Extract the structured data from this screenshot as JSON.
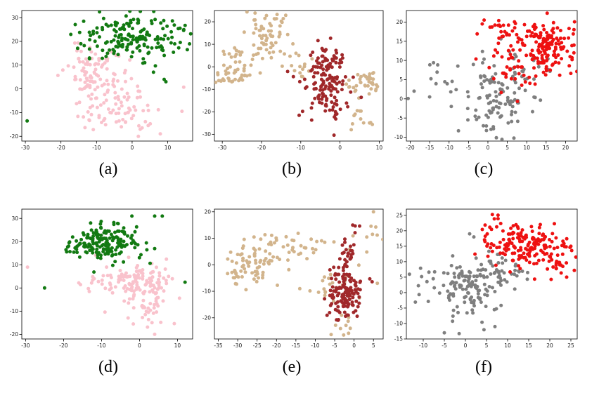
{
  "colors": {
    "green": "#127a12",
    "pink": "#f9c2cc",
    "tan": "#d2b48c",
    "brown": "#a0282a",
    "gray": "#7f7f7f",
    "red": "#ee1111"
  },
  "chart_data": [
    {
      "type": "scatter",
      "caption": "(a)",
      "xlim": [
        -31,
        17
      ],
      "ylim": [
        -22,
        33
      ],
      "xticks": [
        -30,
        -20,
        -10,
        0,
        10
      ],
      "yticks": [
        -20,
        -10,
        0,
        10,
        20,
        30
      ],
      "series": [
        {
          "name": "pink",
          "color": "#f9c2cc",
          "seed": 11,
          "clusters": [
            [
              -10,
              8,
              4,
              5,
              70
            ],
            [
              -7,
              -8,
              4,
              6,
              60
            ],
            [
              0,
              -10,
              5,
              6,
              30
            ],
            [
              -14,
              6,
              3,
              3,
              15
            ]
          ]
        },
        {
          "name": "green",
          "color": "#127a12",
          "seed": 12,
          "clusters": [
            [
              0,
              22,
              7,
              4.5,
              170
            ]
          ],
          "points": [
            [
              -29.5,
              -13.5
            ],
            [
              15.5,
              16.5
            ],
            [
              9,
              4
            ],
            [
              9.5,
              3
            ],
            [
              6,
              7
            ],
            [
              -12,
              13
            ],
            [
              11,
              24
            ]
          ]
        }
      ]
    },
    {
      "type": "scatter",
      "caption": "(b)",
      "xlim": [
        -32,
        11
      ],
      "ylim": [
        -33,
        25
      ],
      "xticks": [
        -30,
        -20,
        -10,
        0,
        10
      ],
      "yticks": [
        -30,
        -20,
        -10,
        0,
        10,
        20
      ],
      "series": [
        {
          "name": "tan",
          "color": "#d2b48c",
          "seed": 21,
          "clusters": [
            [
              -28,
              -4,
              3,
              2.5,
              40
            ],
            [
              -27,
              5,
              2.5,
              3,
              15
            ],
            [
              -19,
              13,
              3,
              6,
              60
            ],
            [
              -16,
              21,
              2,
              2,
              10
            ],
            [
              7,
              -7,
              2.5,
              3,
              40
            ],
            [
              6,
              -24,
              2,
              3.5,
              12
            ],
            [
              -10,
              0,
              3,
              3,
              12
            ]
          ]
        },
        {
          "name": "brown",
          "color": "#a0282a",
          "seed": 22,
          "clusters": [
            [
              -4,
              -7,
              3,
              7,
              130
            ],
            [
              -2,
              4,
              2.5,
              3,
              20
            ]
          ]
        }
      ]
    },
    {
      "type": "scatter",
      "caption": "(c)",
      "xlim": [
        -21,
        23
      ],
      "ylim": [
        -11,
        23
      ],
      "xticks": [
        -20,
        -15,
        -10,
        -5,
        0,
        5,
        10,
        15,
        20
      ],
      "yticks": [
        -10,
        -5,
        0,
        5,
        10,
        15,
        20
      ],
      "series": [
        {
          "name": "gray",
          "color": "#7f7f7f",
          "seed": 31,
          "clusters": [
            [
              2,
              0,
              4,
              5,
              110
            ],
            [
              -10,
              6,
              4,
              3,
              15
            ],
            [
              10,
              7,
              4,
              3,
              25
            ]
          ],
          "points": [
            [
              -19,
              2
            ],
            [
              -15,
              0.5
            ]
          ]
        },
        {
          "name": "red",
          "color": "#ee1111",
          "seed": 32,
          "clusters": [
            [
              15,
              14,
              4,
              3.5,
              140
            ],
            [
              3,
              17,
              3,
              3,
              30
            ],
            [
              8,
              9,
              3.5,
              3,
              40
            ]
          ]
        }
      ]
    },
    {
      "type": "scatter",
      "caption": "(d)",
      "xlim": [
        -31,
        14
      ],
      "ylim": [
        -22,
        34
      ],
      "xticks": [
        -30,
        -20,
        -10,
        0,
        10
      ],
      "yticks": [
        -20,
        -10,
        0,
        10,
        20,
        30
      ],
      "series": [
        {
          "name": "pink",
          "color": "#f9c2cc",
          "seed": 41,
          "clusters": [
            [
              0,
              3,
              4.5,
              4,
              120
            ],
            [
              2,
              -8,
              2.5,
              5,
              40
            ],
            [
              -12,
              4,
              3,
              3,
              10
            ]
          ],
          "points": [
            [
              -29.5,
              9
            ],
            [
              4,
              -20
            ]
          ]
        },
        {
          "name": "green",
          "color": "#127a12",
          "seed": 42,
          "clusters": [
            [
              -9,
              20,
              4.5,
              4,
              160
            ],
            [
              -16,
              19,
              2.5,
              1.5,
              15
            ]
          ],
          "points": [
            [
              -25,
              0
            ],
            [
              12,
              2.5
            ],
            [
              4,
              31
            ],
            [
              6,
              31
            ],
            [
              -2,
              31
            ],
            [
              4,
              17
            ]
          ]
        }
      ]
    },
    {
      "type": "scatter",
      "caption": "(e)",
      "xlim": [
        -36,
        7.5
      ],
      "ylim": [
        -28,
        21
      ],
      "xticks": [
        -35,
        -30,
        -25,
        -20,
        -15,
        -10,
        -5,
        0,
        5
      ],
      "yticks": [
        -20,
        -10,
        0,
        10,
        20
      ],
      "series": [
        {
          "name": "tan",
          "color": "#d2b48c",
          "seed": 51,
          "clusters": [
            [
              -27,
              -1,
              3.5,
              3.5,
              70
            ],
            [
              -19,
              7,
              5,
              3,
              40
            ],
            [
              -6,
              -8,
              3,
              3,
              20
            ],
            [
              -3,
              -24,
              1.5,
              2,
              10
            ],
            [
              3,
              8,
              3,
              6,
              12
            ]
          ],
          "points": [
            [
              5,
              20
            ],
            [
              6,
              -7
            ],
            [
              -14,
              -9
            ]
          ]
        },
        {
          "name": "brown",
          "color": "#a0282a",
          "seed": 52,
          "clusters": [
            [
              -2,
              -10,
              2,
              5.5,
              140
            ],
            [
              -2,
              5,
              1.2,
              2.5,
              20
            ],
            [
              1,
              15,
              0.8,
              2,
              4
            ]
          ]
        }
      ]
    },
    {
      "type": "scatter",
      "caption": "(f)",
      "xlim": [
        -14,
        26.5
      ],
      "ylim": [
        -15,
        27
      ],
      "xticks": [
        -10,
        -5,
        0,
        5,
        10,
        15,
        20,
        25
      ],
      "yticks": [
        -15,
        -10,
        -5,
        0,
        5,
        10,
        15,
        20,
        25
      ],
      "series": [
        {
          "name": "gray",
          "color": "#7f7f7f",
          "seed": 61,
          "clusters": [
            [
              0,
              2,
              4.5,
              4.5,
              120
            ],
            [
              8,
              6,
              3,
              3,
              40
            ],
            [
              -10,
              3,
              2,
              3,
              10
            ]
          ],
          "points": [
            [
              -5,
              -13
            ],
            [
              7,
              -11
            ],
            [
              1,
              19
            ],
            [
              2,
              18
            ]
          ]
        },
        {
          "name": "red",
          "color": "#ee1111",
          "seed": 62,
          "clusters": [
            [
              15,
              15,
              5,
              3.5,
              170
            ],
            [
              22,
              8,
              1.8,
              2.5,
              15
            ],
            [
              7,
              22,
              1.5,
              2,
              12
            ]
          ],
          "points": [
            [
              24,
              5
            ],
            [
              25,
              15
            ]
          ]
        }
      ]
    }
  ]
}
